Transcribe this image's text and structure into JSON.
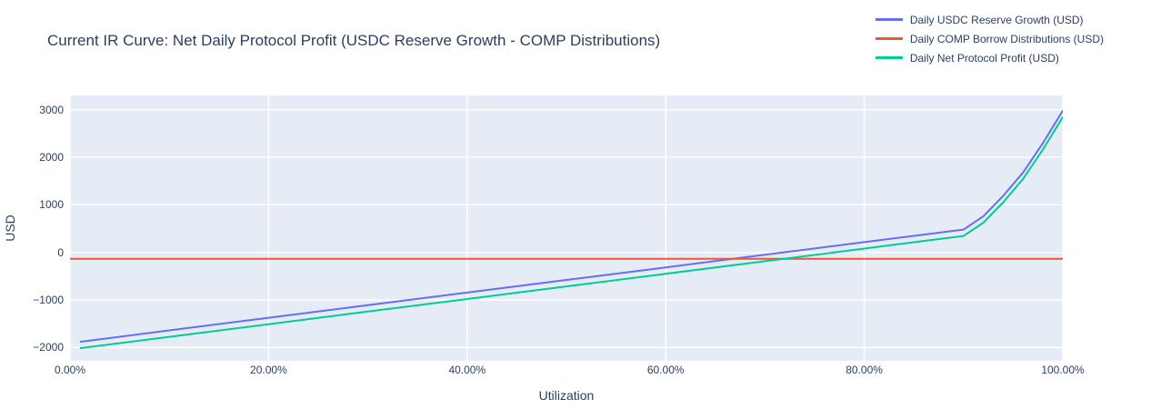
{
  "title": "Current IR Curve: Net Daily Protocol Profit (USDC Reserve Growth - COMP Distributions)",
  "colors": {
    "text": "#2a3f5f",
    "paper_background": "#ffffff",
    "plot_background": "#E5ECF6",
    "grid": "#ffffff",
    "series_usdc_reserve_growth": "#636EFA",
    "series_comp_distributions": "#EF553B",
    "series_net_profit": "#00CC96"
  },
  "chart_data": {
    "type": "line",
    "title": "Current IR Curve: Net Daily Protocol Profit (USDC Reserve Growth - COMP Distributions)",
    "xlabel": "Utilization",
    "ylabel": "USD",
    "xlim": [
      0,
      100
    ],
    "ylim": [
      -2280,
      3300
    ],
    "grid": true,
    "legend_position": "top-right",
    "x": [
      1,
      10,
      20,
      30,
      40,
      50,
      60,
      70,
      80,
      90,
      92,
      94,
      96,
      98,
      100
    ],
    "series": [
      {
        "name": "Daily USDC Reserve Growth (USD)",
        "id": "daily-usdc-reserve-growth-line",
        "color": "#636EFA",
        "values": [
          -1880,
          -1640,
          -1375,
          -1110,
          -845,
          -580,
          -315,
          -50,
          215,
          480,
          760,
          1190,
          1680,
          2300,
          2980
        ]
      },
      {
        "name": "Daily COMP Borrow Distributions (USD)",
        "id": "daily-comp-borrow-distributions-line",
        "color": "#EF553B",
        "x": [
          0,
          100
        ],
        "values": [
          -135,
          -135
        ]
      },
      {
        "name": "Daily Net Protocol Profit (USD)",
        "id": "daily-net-protocol-profit-line",
        "color": "#00CC96",
        "values": [
          -2015,
          -1775,
          -1510,
          -1245,
          -980,
          -715,
          -450,
          -185,
          80,
          345,
          625,
          1055,
          1545,
          2165,
          2845
        ]
      }
    ],
    "x_ticks": {
      "values": [
        0,
        20,
        40,
        60,
        80,
        100
      ],
      "labels": [
        "0.00%",
        "20.00%",
        "40.00%",
        "60.00%",
        "80.00%",
        "100.00%"
      ]
    },
    "y_ticks": {
      "values": [
        -2000,
        -1000,
        0,
        1000,
        2000,
        3000
      ],
      "labels": [
        "−2000",
        "−1000",
        "0",
        "1000",
        "2000",
        "3000"
      ]
    }
  }
}
